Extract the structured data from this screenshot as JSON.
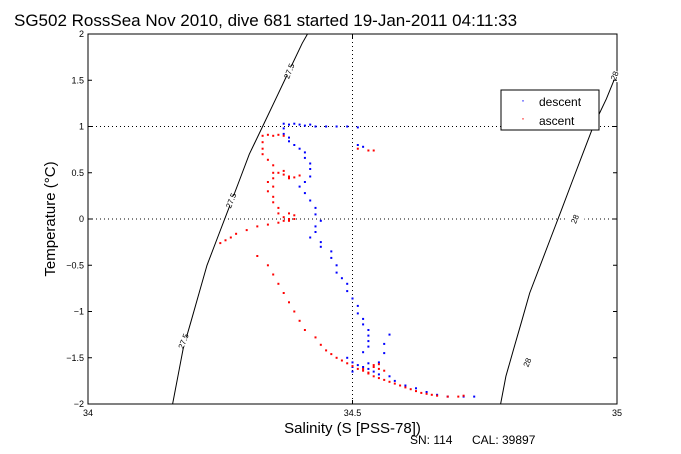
{
  "chart_data": {
    "type": "scatter",
    "title": "SG502 RossSea Nov 2010, dive 681 started 19-Jan-2011 04:11:33",
    "xlabel": "Salinity (S [PSS-78])",
    "ylabel": "Temperature (°C)",
    "xlim": [
      34,
      35
    ],
    "ylim": [
      -2,
      2
    ],
    "xticks": [
      "34",
      "34.5",
      "35"
    ],
    "yticks": [
      "-2",
      "-1.5",
      "-1",
      "-0.5",
      "0",
      "0.5",
      "1",
      "1.5",
      "2"
    ],
    "grid": "dotted at 34.5 and 0/1",
    "legend": {
      "placement": "top-right",
      "entries": [
        "descent",
        "ascent"
      ]
    },
    "series": [
      {
        "name": "descent",
        "color": "#0000ff",
        "points": [
          [
            34.37,
            1.03
          ],
          [
            34.38,
            1.02
          ],
          [
            34.39,
            1.03
          ],
          [
            34.4,
            1.02
          ],
          [
            34.41,
            1.01
          ],
          [
            34.42,
            1.02
          ],
          [
            34.43,
            1.0
          ],
          [
            34.45,
            1.0
          ],
          [
            34.47,
            1.0
          ],
          [
            34.49,
            1.0
          ],
          [
            34.51,
            0.99
          ],
          [
            34.37,
            0.98
          ],
          [
            34.37,
            0.92
          ],
          [
            34.38,
            0.88
          ],
          [
            34.38,
            0.84
          ],
          [
            34.39,
            0.8
          ],
          [
            34.4,
            0.76
          ],
          [
            34.41,
            0.72
          ],
          [
            34.41,
            0.66
          ],
          [
            34.42,
            0.6
          ],
          [
            34.42,
            0.54
          ],
          [
            34.42,
            0.46
          ],
          [
            34.41,
            0.4
          ],
          [
            34.4,
            0.35
          ],
          [
            34.41,
            0.28
          ],
          [
            34.42,
            0.2
          ],
          [
            34.43,
            0.12
          ],
          [
            34.43,
            0.05
          ],
          [
            34.44,
            -0.02
          ],
          [
            34.43,
            -0.08
          ],
          [
            34.43,
            -0.14
          ],
          [
            34.42,
            -0.2
          ],
          [
            34.44,
            -0.25
          ],
          [
            34.44,
            -0.3
          ],
          [
            34.46,
            -0.35
          ],
          [
            34.46,
            -0.42
          ],
          [
            34.47,
            -0.5
          ],
          [
            34.47,
            -0.58
          ],
          [
            34.48,
            -0.64
          ],
          [
            34.49,
            -0.7
          ],
          [
            34.49,
            -0.78
          ],
          [
            34.5,
            -0.86
          ],
          [
            34.51,
            -0.94
          ],
          [
            34.51,
            -1.02
          ],
          [
            34.52,
            -1.08
          ],
          [
            34.52,
            -1.14
          ],
          [
            34.53,
            -1.2
          ],
          [
            34.53,
            -1.26
          ],
          [
            34.53,
            -1.32
          ],
          [
            34.53,
            -1.38
          ],
          [
            34.52,
            -1.44
          ],
          [
            34.49,
            -1.5
          ],
          [
            34.5,
            -1.55
          ],
          [
            34.5,
            -1.6
          ],
          [
            34.5,
            -1.65
          ],
          [
            34.52,
            -1.6
          ],
          [
            34.53,
            -1.62
          ],
          [
            34.51,
            -1.58
          ],
          [
            34.53,
            -1.56
          ],
          [
            34.54,
            -1.65
          ],
          [
            34.55,
            -1.68
          ],
          [
            34.55,
            -1.55
          ],
          [
            34.56,
            -1.45
          ],
          [
            34.56,
            -1.35
          ],
          [
            34.57,
            -1.25
          ],
          [
            34.57,
            -1.7
          ],
          [
            34.58,
            -1.75
          ],
          [
            34.6,
            -1.8
          ],
          [
            34.62,
            -1.83
          ],
          [
            34.64,
            -1.87
          ],
          [
            34.66,
            -1.9
          ],
          [
            34.68,
            -1.92
          ],
          [
            34.71,
            -1.92
          ],
          [
            34.73,
            -1.92
          ],
          [
            34.51,
            0.8
          ],
          [
            34.52,
            0.78
          ]
        ]
      },
      {
        "name": "ascent",
        "color": "#ff0000",
        "points": [
          [
            34.33,
            0.9
          ],
          [
            34.34,
            0.91
          ],
          [
            34.35,
            0.9
          ],
          [
            34.36,
            0.91
          ],
          [
            34.37,
            0.9
          ],
          [
            34.33,
            0.83
          ],
          [
            34.33,
            0.76
          ],
          [
            34.33,
            0.7
          ],
          [
            34.34,
            0.64
          ],
          [
            34.35,
            0.58
          ],
          [
            34.35,
            0.5
          ],
          [
            34.35,
            0.44
          ],
          [
            34.34,
            0.4
          ],
          [
            34.35,
            0.35
          ],
          [
            34.34,
            0.3
          ],
          [
            34.35,
            0.24
          ],
          [
            34.35,
            0.18
          ],
          [
            34.36,
            0.12
          ],
          [
            34.36,
            0.06
          ],
          [
            34.37,
            0.02
          ],
          [
            34.38,
            0.0
          ],
          [
            34.36,
            0.5
          ],
          [
            34.37,
            0.48
          ],
          [
            34.38,
            0.46
          ],
          [
            34.39,
            0.45
          ],
          [
            34.4,
            0.47
          ],
          [
            34.38,
            0.44
          ],
          [
            34.37,
            0.52
          ],
          [
            34.38,
            0.06
          ],
          [
            34.39,
            0.04
          ],
          [
            34.39,
            0.0
          ],
          [
            34.38,
            -0.02
          ],
          [
            34.37,
            -0.02
          ],
          [
            34.36,
            -0.04
          ],
          [
            34.34,
            -0.06
          ],
          [
            34.32,
            -0.08
          ],
          [
            34.3,
            -0.12
          ],
          [
            34.28,
            -0.16
          ],
          [
            34.27,
            -0.2
          ],
          [
            34.26,
            -0.23
          ],
          [
            34.25,
            -0.26
          ],
          [
            34.32,
            -0.4
          ],
          [
            34.34,
            -0.5
          ],
          [
            34.35,
            -0.6
          ],
          [
            34.36,
            -0.7
          ],
          [
            34.37,
            -0.8
          ],
          [
            34.38,
            -0.9
          ],
          [
            34.39,
            -1.0
          ],
          [
            34.4,
            -1.1
          ],
          [
            34.41,
            -1.2
          ],
          [
            34.43,
            -1.28
          ],
          [
            34.44,
            -1.36
          ],
          [
            34.45,
            -1.42
          ],
          [
            34.46,
            -1.46
          ],
          [
            34.47,
            -1.5
          ],
          [
            34.48,
            -1.53
          ],
          [
            34.49,
            -1.56
          ],
          [
            34.5,
            -1.59
          ],
          [
            34.51,
            -1.62
          ],
          [
            34.52,
            -1.64
          ],
          [
            34.53,
            -1.67
          ],
          [
            34.54,
            -1.7
          ],
          [
            34.55,
            -1.72
          ],
          [
            34.56,
            -1.74
          ],
          [
            34.57,
            -1.76
          ],
          [
            34.58,
            -1.78
          ],
          [
            34.59,
            -1.8
          ],
          [
            34.6,
            -1.82
          ],
          [
            34.61,
            -1.84
          ],
          [
            34.62,
            -1.86
          ],
          [
            34.63,
            -1.88
          ],
          [
            34.64,
            -1.89
          ],
          [
            34.65,
            -1.9
          ],
          [
            34.66,
            -1.91
          ],
          [
            34.68,
            -1.92
          ],
          [
            34.7,
            -1.92
          ],
          [
            34.71,
            -1.91
          ],
          [
            34.54,
            -1.6
          ],
          [
            34.55,
            -1.62
          ],
          [
            34.56,
            -1.64
          ],
          [
            34.54,
            -1.58
          ],
          [
            34.53,
            -1.66
          ],
          [
            34.52,
            -1.62
          ],
          [
            34.55,
            -1.57
          ],
          [
            34.51,
            0.76
          ],
          [
            34.53,
            0.74
          ],
          [
            34.54,
            0.74
          ]
        ]
      }
    ],
    "density_contours": [
      {
        "label": "27.5",
        "label_at": [
          [
            34.38,
            1.6
          ],
          [
            34.27,
            0.2
          ],
          [
            34.18,
            -1.32
          ]
        ],
        "points": [
          [
            34.16,
            -2.0
          ],
          [
            34.17,
            -1.7
          ],
          [
            34.18,
            -1.4
          ],
          [
            34.195,
            -1.1
          ],
          [
            34.21,
            -0.8
          ],
          [
            34.225,
            -0.5
          ],
          [
            34.245,
            -0.2
          ],
          [
            34.265,
            0.1
          ],
          [
            34.285,
            0.4
          ],
          [
            34.305,
            0.7
          ],
          [
            34.33,
            1.0
          ],
          [
            34.355,
            1.3
          ],
          [
            34.38,
            1.6
          ],
          [
            34.405,
            1.9
          ],
          [
            34.415,
            2.0
          ]
        ]
      },
      {
        "label": "28",
        "label_at": [
          [
            34.995,
            1.55
          ],
          [
            34.92,
            0.0
          ],
          [
            34.83,
            -1.55
          ]
        ],
        "points": [
          [
            34.78,
            -2.0
          ],
          [
            34.79,
            -1.7
          ],
          [
            34.805,
            -1.4
          ],
          [
            34.82,
            -1.1
          ],
          [
            34.835,
            -0.8
          ],
          [
            34.855,
            -0.5
          ],
          [
            34.875,
            -0.2
          ],
          [
            34.895,
            0.1
          ],
          [
            34.915,
            0.4
          ],
          [
            34.935,
            0.7
          ],
          [
            34.955,
            1.0
          ],
          [
            34.98,
            1.3
          ],
          [
            35.0,
            1.58
          ]
        ]
      }
    ]
  },
  "footer": {
    "serial": "SN: 114",
    "cal": "CAL: 39897"
  }
}
